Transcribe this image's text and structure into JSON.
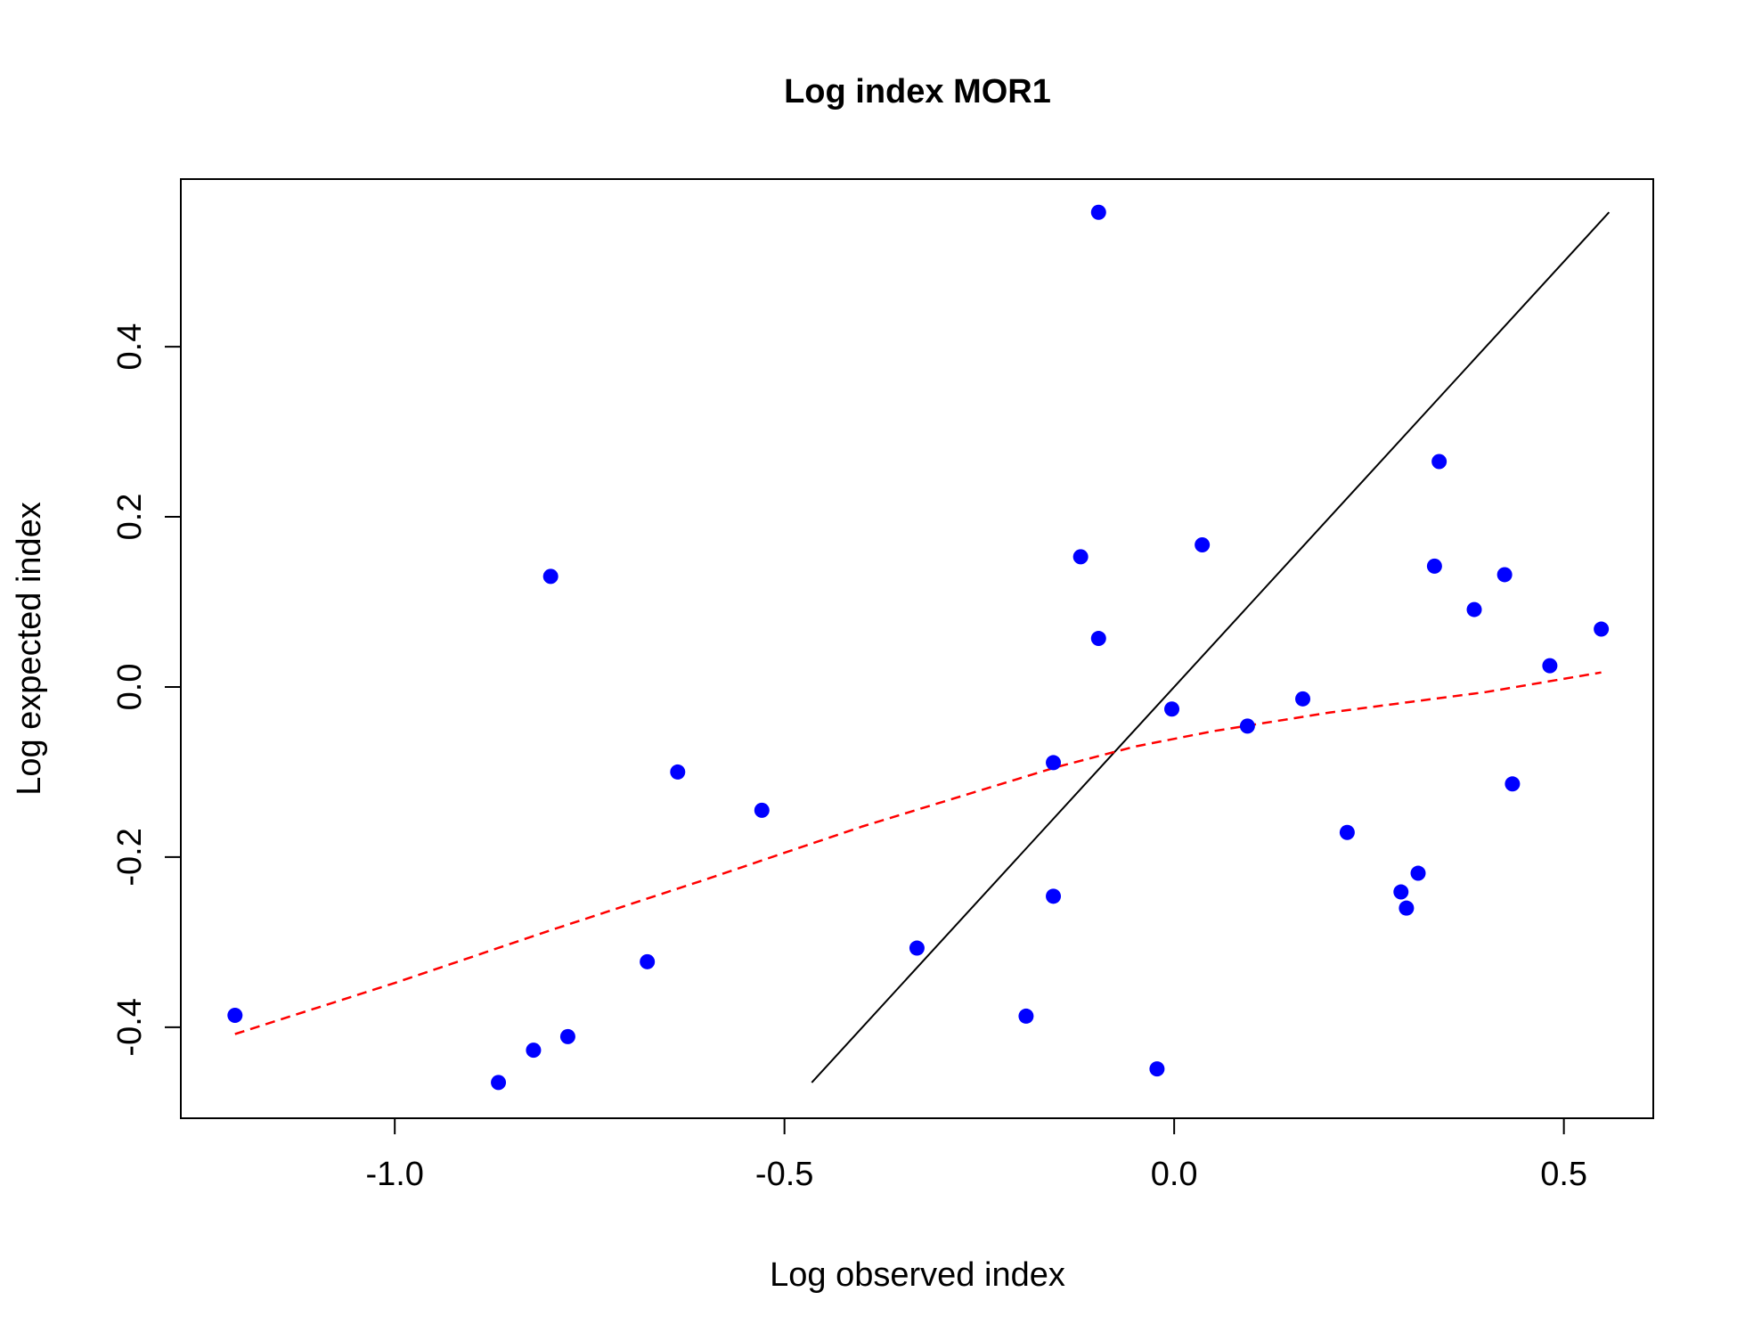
{
  "chart_data": {
    "type": "scatter",
    "title": "Log index MOR1",
    "xlabel": "Log observed index",
    "ylabel": "Log expected index",
    "xlim": [
      -1.2745,
      0.6147
    ],
    "ylim": [
      -0.507,
      0.597
    ],
    "x_ticks": [
      -1.0,
      -0.5,
      0.0,
      0.5
    ],
    "x_tick_labels": [
      "-1.0",
      "-0.5",
      "0.0",
      "0.5"
    ],
    "y_ticks": [
      -0.4,
      -0.2,
      0.0,
      0.2,
      0.4
    ],
    "y_tick_labels": [
      "-0.4",
      "-0.2",
      "0.0",
      "0.2",
      "0.4"
    ],
    "grid": false,
    "points": {
      "color": "#0000ff",
      "x": [
        -1.205,
        -0.867,
        -0.822,
        -0.8,
        -0.778,
        -0.676,
        -0.637,
        -0.529,
        -0.33,
        -0.19,
        -0.155,
        -0.155,
        -0.12,
        -0.097,
        -0.097,
        -0.022,
        -0.003,
        0.036,
        0.094,
        0.165,
        0.222,
        0.291,
        0.298,
        0.313,
        0.334,
        0.34,
        0.385,
        0.424,
        0.434,
        0.482,
        0.548
      ],
      "y": [
        -0.386,
        -0.465,
        -0.427,
        0.13,
        -0.411,
        -0.323,
        -0.1,
        -0.145,
        -0.307,
        -0.387,
        -0.089,
        -0.246,
        0.153,
        0.057,
        0.558,
        -0.449,
        -0.026,
        0.167,
        -0.046,
        -0.014,
        -0.171,
        -0.241,
        -0.26,
        -0.219,
        0.142,
        0.265,
        0.091,
        0.132,
        -0.114,
        0.025,
        0.068
      ]
    },
    "identity_line": {
      "color": "#000000",
      "x": [
        -0.465,
        0.558
      ],
      "y": [
        -0.465,
        0.558
      ]
    },
    "smooth_line": {
      "color": "#ff0000",
      "style": "dashed",
      "x": [
        -1.205,
        -1.0,
        -0.8,
        -0.6,
        -0.4,
        -0.25,
        -0.15,
        -0.05,
        0.05,
        0.2,
        0.3,
        0.4,
        0.548
      ],
      "y": [
        -0.408,
        -0.348,
        -0.286,
        -0.226,
        -0.164,
        -0.122,
        -0.094,
        -0.07,
        -0.052,
        -0.03,
        -0.018,
        -0.006,
        0.017
      ]
    }
  }
}
